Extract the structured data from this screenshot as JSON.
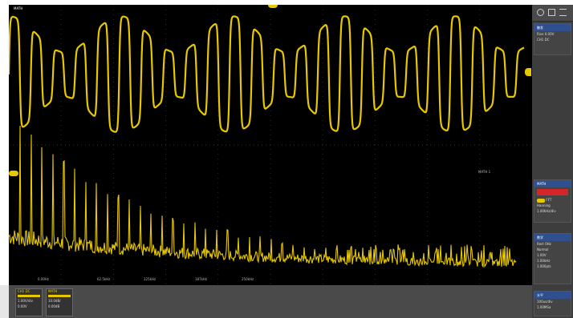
{
  "screen": {
    "top_label": "MATH",
    "fft_label": "MATH 1"
  },
  "grid": {
    "bottom_tick_labels": [
      "0.00Hz",
      "62.5kHz",
      "125kHz",
      "187kHz",
      "250kHz"
    ]
  },
  "sidebar": {
    "top_icons": [
      "settings-icon",
      "help-icon",
      "menu-icon"
    ],
    "sections": [
      {
        "title": "触发",
        "lines": [
          "Rise 0.00V",
          "CH1 DC"
        ]
      },
      {
        "title": "MATH",
        "lines": [
          "FFT",
          "Hanning",
          "1.00kHz/div"
        ]
      },
      {
        "title": "数学",
        "lines": [
          "Rect 0Hz",
          "Normal",
          "1.00V",
          "1.00kHz",
          "1.000pts"
        ]
      },
      {
        "title": "水平",
        "lines": [
          "100us/div",
          "1.00MSa"
        ]
      }
    ]
  },
  "bottom": {
    "ch1": {
      "title": "CH1 DC",
      "lines": [
        "1.00V/div",
        "0.00V"
      ]
    },
    "math": {
      "title": "MATH",
      "lines": [
        "10.0dB/",
        "0.00dB"
      ]
    }
  },
  "colors": {
    "trace": "#e6c700",
    "accent": "#2f4f8f",
    "alert": "#d4252b"
  }
}
